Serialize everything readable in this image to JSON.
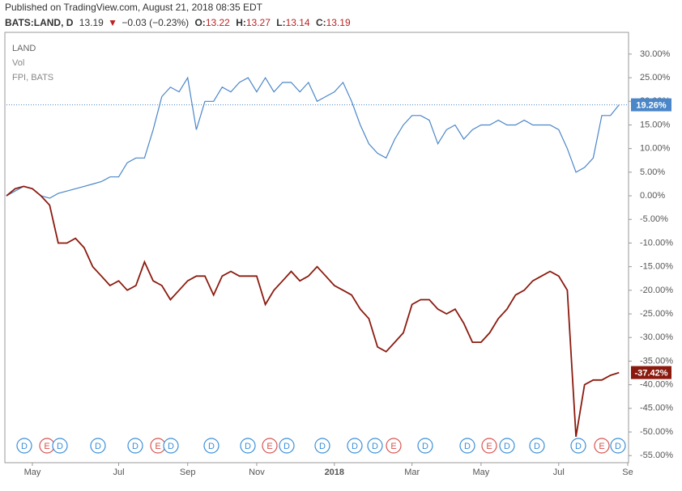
{
  "header": {
    "published": "Published on TradingView.com, August 21, 2018 08:35 EDT",
    "symbol": "BATS:LAND, D",
    "last": "13.19",
    "arrow": "▼",
    "change": "−0.03 (−0.23%)",
    "ohlc": [
      {
        "label": "O:",
        "value": "13.22"
      },
      {
        "label": "H:",
        "value": "13.27"
      },
      {
        "label": "L:",
        "value": "13.14"
      },
      {
        "label": "C:",
        "value": "13.19"
      }
    ]
  },
  "legend": [
    "LAND",
    "Vol",
    "FPI, BATS"
  ],
  "events": [
    "D",
    "E",
    "D",
    "D",
    "D",
    "E",
    "D",
    "D",
    "D",
    "E",
    "D",
    "D",
    "D",
    "D",
    "E",
    "D",
    "D",
    "E",
    "D",
    "D",
    "D",
    "E",
    "D"
  ],
  "chart_data": {
    "type": "line",
    "categories": [
      null,
      null,
      null,
      "May",
      null,
      null,
      null,
      null,
      null,
      null,
      null,
      null,
      null,
      "Jul",
      null,
      null,
      null,
      null,
      null,
      null,
      null,
      "Sep",
      null,
      null,
      null,
      null,
      null,
      null,
      null,
      "Nov",
      null,
      null,
      null,
      null,
      null,
      null,
      null,
      null,
      "2018",
      null,
      null,
      null,
      null,
      null,
      null,
      null,
      null,
      "Mar",
      null,
      null,
      null,
      null,
      null,
      null,
      null,
      "May",
      null,
      null,
      null,
      null,
      null,
      null,
      null,
      null,
      "Jul",
      null,
      null,
      null,
      null,
      null,
      null,
      null,
      "Se"
    ],
    "series": [
      {
        "name": "FPI, BATS",
        "color": "#4a86c8",
        "values": [
          0,
          1,
          2,
          1.5,
          0,
          -0.5,
          0.5,
          1,
          1.5,
          2,
          2.5,
          3,
          4,
          4,
          7,
          8,
          8,
          14,
          21,
          23,
          22,
          25,
          14,
          20,
          20,
          23,
          22,
          24,
          25,
          22,
          25,
          22,
          24,
          24,
          22,
          24,
          20,
          21,
          22,
          24,
          20,
          15,
          11,
          9,
          8,
          12,
          15,
          17,
          17,
          16,
          11,
          14,
          15,
          12,
          14,
          15,
          15,
          16,
          15,
          15,
          16,
          15,
          15,
          15,
          14,
          10,
          5,
          6,
          8,
          17,
          17,
          19.26,
          null
        ],
        "value_labels": [
          null,
          null,
          null,
          null,
          null,
          null,
          null,
          null,
          null,
          null,
          null,
          null,
          null,
          null,
          null,
          null,
          null,
          null,
          null,
          null,
          null,
          null,
          null,
          null,
          null,
          null,
          null,
          null,
          null,
          null,
          null,
          null,
          null,
          null,
          null,
          null,
          null,
          null,
          null,
          null,
          null,
          null,
          null,
          null,
          null,
          null,
          null,
          null,
          null,
          null,
          null,
          null,
          null,
          null,
          null,
          null,
          null,
          null,
          null,
          null,
          null,
          null,
          null,
          null,
          null,
          null,
          null,
          null,
          null,
          null,
          null,
          "19.26%",
          null
        ]
      },
      {
        "name": "LAND",
        "color": "#8b1a0e",
        "values": [
          0,
          1.5,
          2,
          1.5,
          0,
          -2,
          -10,
          -10,
          -9,
          -11,
          -15,
          -17,
          -19,
          -18,
          -20,
          -19,
          -14,
          -18,
          -19,
          -22,
          -20,
          -18,
          -17,
          -17,
          -21,
          -17,
          -16,
          -17,
          -17,
          -17,
          -23,
          -20,
          -18,
          -16,
          -18,
          -17,
          -15,
          -17,
          -19,
          -20,
          -21,
          -24,
          -26,
          -32,
          -33,
          -31,
          -29,
          -23,
          -22,
          -22,
          -24,
          -25,
          -24,
          -27,
          -31,
          -31,
          -29,
          -26,
          -24,
          -21,
          -20,
          -18,
          -17,
          -16,
          -17,
          -20,
          -51,
          -40,
          -39,
          -39,
          -38,
          -37.42,
          null
        ],
        "value_labels": [
          null,
          null,
          null,
          null,
          null,
          null,
          null,
          null,
          null,
          null,
          null,
          null,
          null,
          null,
          null,
          null,
          null,
          null,
          null,
          null,
          null,
          null,
          null,
          null,
          null,
          null,
          null,
          null,
          null,
          null,
          null,
          null,
          null,
          null,
          null,
          null,
          null,
          null,
          null,
          null,
          null,
          null,
          null,
          null,
          null,
          null,
          null,
          null,
          null,
          null,
          null,
          null,
          null,
          null,
          null,
          null,
          null,
          null,
          null,
          null,
          null,
          null,
          null,
          null,
          null,
          null,
          null,
          null,
          null,
          null,
          null,
          "-37.42%",
          null
        ]
      }
    ],
    "ylim": [
      -56.5,
      34.6
    ],
    "yticks": [
      {
        "value": 30,
        "label": "30.00%"
      },
      {
        "value": 25,
        "label": "25.00%"
      },
      {
        "value": 20,
        "label": "20.00%"
      },
      {
        "value": 15,
        "label": "15.00%"
      },
      {
        "value": 10,
        "label": "10.00%"
      },
      {
        "value": 5,
        "label": "5.00%"
      },
      {
        "value": 0,
        "label": "0.00%"
      },
      {
        "value": -5,
        "label": "-5.00%"
      },
      {
        "value": -10,
        "label": "-10.00%"
      },
      {
        "value": -15,
        "label": "-15.00%"
      },
      {
        "value": -20,
        "label": "-20.00%"
      },
      {
        "value": -25,
        "label": "-25.00%"
      },
      {
        "value": -30,
        "label": "-30.00%"
      },
      {
        "value": -35,
        "label": "-35.00%"
      },
      {
        "value": -40,
        "label": "-40.00%"
      },
      {
        "value": -45,
        "label": "-45.00%"
      },
      {
        "value": -50,
        "label": "-50.00%"
      },
      {
        "value": -55,
        "label": "-55.00%"
      }
    ],
    "grid": false
  }
}
